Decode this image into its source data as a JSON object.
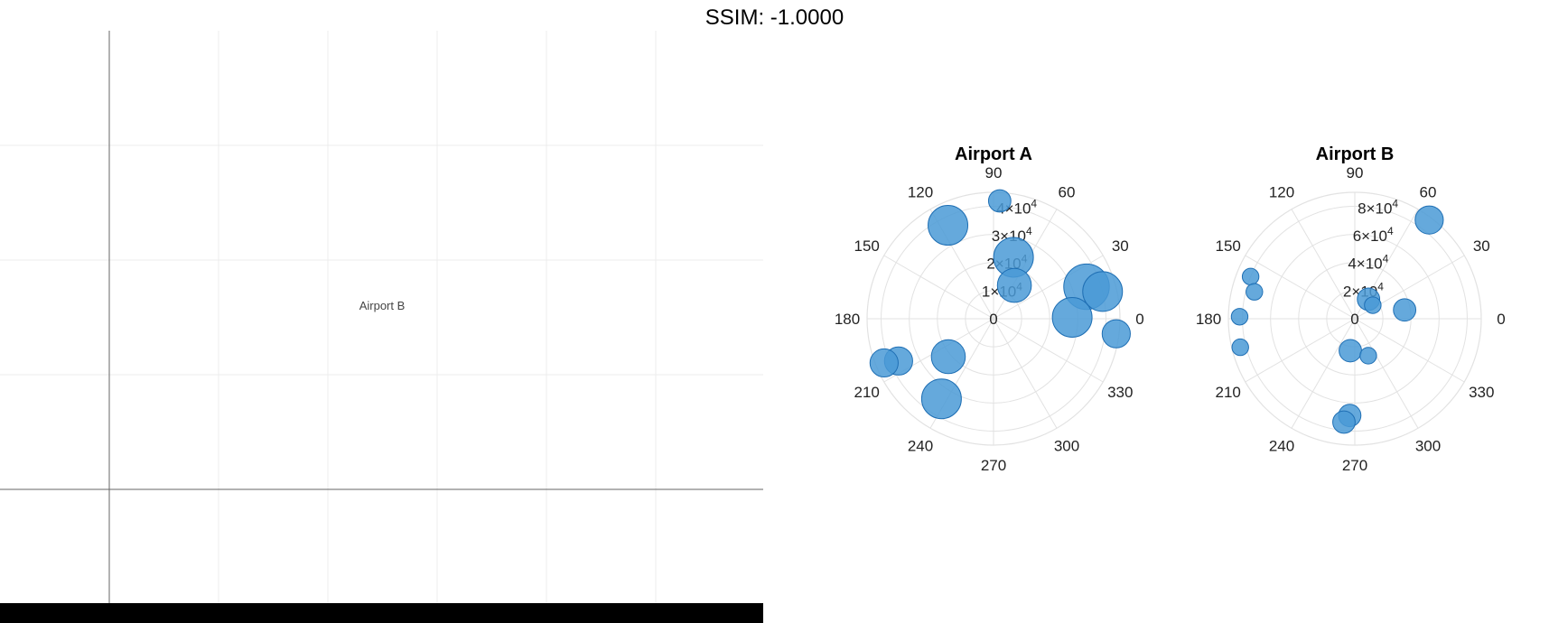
{
  "header": {
    "ssim_label": "SSIM: -1.0000"
  },
  "left_plot": {
    "label": "Airport B"
  },
  "colors": {
    "marker_fill": "#4a9ad6",
    "marker_edge": "#1f6fb4",
    "grid": "#e2e2e2"
  },
  "chart_data": [
    {
      "type": "scatter",
      "subtype": "polar-bubble",
      "title": "Airport A",
      "angle_ticks": [
        "0",
        "30",
        "60",
        "90",
        "120",
        "150",
        "180",
        "210",
        "240",
        "270",
        "300",
        "330"
      ],
      "r_ticks": [
        0,
        10000,
        20000,
        30000,
        40000
      ],
      "r_tick_labels": [
        "0",
        "1×10",
        "2×10",
        "3×10",
        "4×10"
      ],
      "r_tick_exponent": "4",
      "rlim": [
        0,
        45000
      ],
      "points": [
        {
          "theta": 87,
          "r": 42000,
          "size": 2
        },
        {
          "theta": 116,
          "r": 37000,
          "size": 5
        },
        {
          "theta": 72,
          "r": 23000,
          "size": 5
        },
        {
          "theta": 58,
          "r": 14000,
          "size": 4
        },
        {
          "theta": 19,
          "r": 35000,
          "size": 6
        },
        {
          "theta": 14,
          "r": 40000,
          "size": 5
        },
        {
          "theta": 1,
          "r": 28000,
          "size": 5
        },
        {
          "theta": 353,
          "r": 44000,
          "size": 3
        },
        {
          "theta": 220,
          "r": 21000,
          "size": 4
        },
        {
          "theta": 204,
          "r": 37000,
          "size": 3
        },
        {
          "theta": 202,
          "r": 42000,
          "size": 3
        },
        {
          "theta": 237,
          "r": 34000,
          "size": 5
        }
      ]
    },
    {
      "type": "scatter",
      "subtype": "polar-bubble",
      "title": "Airport B",
      "angle_ticks": [
        "0",
        "30",
        "60",
        "90",
        "120",
        "150",
        "180",
        "210",
        "240",
        "270",
        "300",
        "330"
      ],
      "r_ticks": [
        0,
        20000,
        40000,
        60000,
        80000
      ],
      "r_tick_labels": [
        "0",
        "2×10",
        "4×10",
        "6×10",
        "8×10"
      ],
      "r_tick_exponent": "4",
      "rlim": [
        0,
        90000
      ],
      "points": [
        {
          "theta": 53,
          "r": 88000,
          "size": 3
        },
        {
          "theta": 55,
          "r": 17000,
          "size": 2
        },
        {
          "theta": 37,
          "r": 16000,
          "size": 1
        },
        {
          "theta": 10,
          "r": 36000,
          "size": 2
        },
        {
          "theta": 158,
          "r": 80000,
          "size": 1
        },
        {
          "theta": 165,
          "r": 74000,
          "size": 1
        },
        {
          "theta": 179,
          "r": 82000,
          "size": 1
        },
        {
          "theta": 194,
          "r": 84000,
          "size": 1
        },
        {
          "theta": 262,
          "r": 23000,
          "size": 2
        },
        {
          "theta": 290,
          "r": 28000,
          "size": 1
        },
        {
          "theta": 267,
          "r": 69000,
          "size": 2
        },
        {
          "theta": 264,
          "r": 74000,
          "size": 2
        }
      ]
    }
  ]
}
